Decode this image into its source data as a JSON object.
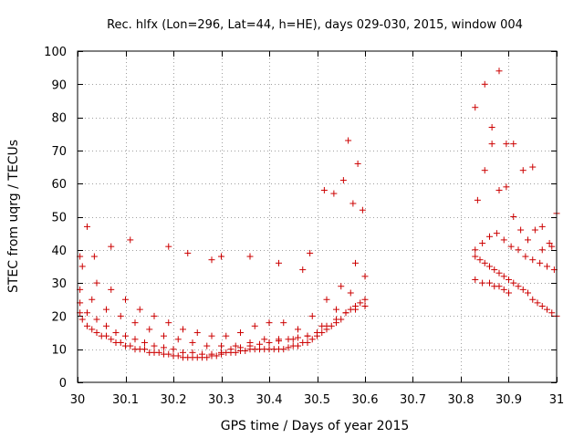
{
  "chart_data": {
    "type": "scatter",
    "title": "Rec. hlfx (Lon=296, Lat=44, h=HE), days 029-030, 2015, window 004",
    "xlabel": "GPS time / Days of year 2015",
    "ylabel": "STEC from uqrg / TECUs",
    "xlim": [
      30,
      31
    ],
    "ylim": [
      0,
      100
    ],
    "xticks": [
      30,
      30.1,
      30.2,
      30.3,
      30.4,
      30.5,
      30.6,
      30.7,
      30.8,
      30.9,
      31
    ],
    "xtick_labels": [
      "30",
      "30.1",
      "30.2",
      "30.3",
      "30.4",
      "30.5",
      "30.6",
      "30.7",
      "30.8",
      "30.9",
      "31"
    ],
    "yticks": [
      0,
      10,
      20,
      30,
      40,
      50,
      60,
      70,
      80,
      90,
      100
    ],
    "ytick_labels": [
      "0",
      "10",
      "20",
      "30",
      "40",
      "50",
      "60",
      "70",
      "80",
      "90",
      "100"
    ],
    "grid": true,
    "marker": "plus",
    "color": "#cc0000",
    "x": [
      30.005,
      30.01,
      30.02,
      30.03,
      30.04,
      30.05,
      30.06,
      30.07,
      30.08,
      30.09,
      30.1,
      30.11,
      30.12,
      30.13,
      30.14,
      30.15,
      30.16,
      30.17,
      30.18,
      30.19,
      30.2,
      30.21,
      30.22,
      30.23,
      30.24,
      30.25,
      30.26,
      30.27,
      30.28,
      30.29,
      30.3,
      30.31,
      30.32,
      30.33,
      30.34,
      30.35,
      30.36,
      30.37,
      30.38,
      30.39,
      30.4,
      30.41,
      30.42,
      30.43,
      30.44,
      30.45,
      30.46,
      30.47,
      30.48,
      30.49,
      30.5,
      30.51,
      30.52,
      30.53,
      30.54,
      30.55,
      30.56,
      30.57,
      30.58,
      30.59,
      30.6,
      30.005,
      30.02,
      30.04,
      30.06,
      30.08,
      30.1,
      30.12,
      30.14,
      30.16,
      30.18,
      30.2,
      30.22,
      30.24,
      30.26,
      30.28,
      30.3,
      30.32,
      30.34,
      30.36,
      30.38,
      30.4,
      30.42,
      30.44,
      30.46,
      30.48,
      30.5,
      30.52,
      30.54,
      30.56,
      30.58,
      30.6,
      30.005,
      30.03,
      30.06,
      30.09,
      30.12,
      30.15,
      30.18,
      30.21,
      30.24,
      30.27,
      30.3,
      30.33,
      30.36,
      30.39,
      30.42,
      30.45,
      30.48,
      30.51,
      30.54,
      30.57,
      30.6,
      30.01,
      30.04,
      30.07,
      30.1,
      30.13,
      30.16,
      30.19,
      30.22,
      30.25,
      30.28,
      30.31,
      30.34,
      30.37,
      30.4,
      30.43,
      30.46,
      30.49,
      30.52,
      30.55,
      30.58,
      30.005,
      30.02,
      30.035,
      30.07,
      30.11,
      30.19,
      30.23,
      30.28,
      30.3,
      30.36,
      30.42,
      30.47,
      30.485,
      30.515,
      30.535,
      30.555,
      30.565,
      30.575,
      30.585,
      30.595,
      30.83,
      30.84,
      30.85,
      30.86,
      30.87,
      30.88,
      30.89,
      30.9,
      30.91,
      30.92,
      30.93,
      30.94,
      30.95,
      30.96,
      30.97,
      30.98,
      30.99,
      31.0,
      30.83,
      30.845,
      30.86,
      30.875,
      30.89,
      30.905,
      30.92,
      30.935,
      30.95,
      30.965,
      30.98,
      30.995,
      30.835,
      30.85,
      30.865,
      30.88,
      30.895,
      30.91,
      30.925,
      30.94,
      30.955,
      30.97,
      30.985,
      31.0,
      30.83,
      30.85,
      30.865,
      30.88,
      30.895,
      30.91,
      30.93,
      30.95,
      30.97,
      30.99,
      30.83,
      30.845,
      30.86,
      30.87,
      30.88,
      30.89,
      30.9
    ],
    "y": [
      21,
      19,
      17,
      16,
      15,
      14,
      14,
      13,
      12,
      12,
      11,
      11,
      10,
      10,
      10,
      9,
      9,
      9,
      8.5,
      8.5,
      8,
      8,
      7.5,
      7.5,
      7.5,
      7.5,
      7.5,
      7.5,
      8,
      8,
      8.5,
      9,
      9,
      9,
      9.5,
      9.5,
      10,
      10,
      10,
      10,
      10,
      10,
      10,
      10,
      10.5,
      11,
      11,
      12,
      12,
      13,
      14,
      15,
      16,
      17,
      18,
      19,
      21,
      22,
      23,
      24,
      25,
      24,
      21,
      19,
      17,
      15,
      14,
      13,
      12,
      11,
      10.5,
      10,
      9,
      9,
      8.5,
      8.5,
      9,
      10,
      10.5,
      11,
      11.5,
      12,
      12.5,
      13,
      13.5,
      14,
      15,
      17,
      19,
      21,
      22,
      23,
      28,
      25,
      22,
      20,
      18,
      16,
      14,
      13,
      12,
      11,
      11,
      11,
      12,
      13,
      13,
      13,
      14,
      17,
      22,
      27,
      32,
      35,
      30,
      28,
      25,
      22,
      20,
      18,
      16,
      15,
      14,
      14,
      15,
      17,
      18,
      18,
      16,
      20,
      25,
      29,
      36,
      38,
      47,
      38,
      41,
      43,
      41,
      39,
      37,
      38,
      38,
      36,
      34,
      39,
      58,
      57,
      61,
      73,
      54,
      66,
      52,
      38,
      37,
      36,
      35,
      34,
      33,
      32,
      31,
      30,
      29,
      28,
      27,
      25,
      24,
      23,
      22,
      21,
      20,
      40,
      42,
      44,
      45,
      43,
      41,
      40,
      38,
      37,
      36,
      35,
      34,
      55,
      64,
      72,
      58,
      59,
      50,
      46,
      43,
      46,
      47,
      42,
      51,
      83,
      90,
      77,
      94,
      72,
      72,
      64,
      65,
      40,
      41,
      31,
      30,
      30,
      29,
      29,
      28,
      27
    ]
  }
}
